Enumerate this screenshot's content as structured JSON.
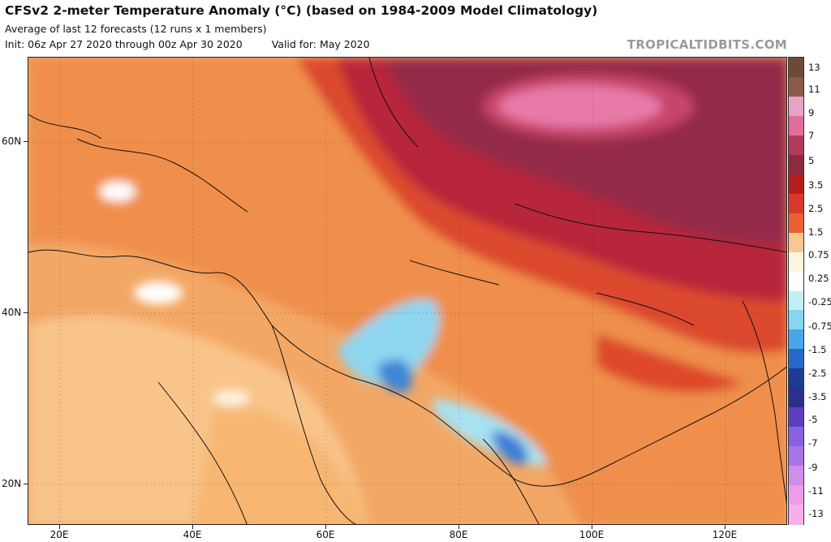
{
  "header": {
    "title": "CFSv2 2-meter Temperature Anomaly (°C) (based on 1984-2009 Model Climatology)",
    "subtitle": "Average of last 12 forecasts (12 runs x 1 members)",
    "init": "Init: 06z Apr 27 2020 through 00z Apr 30 2020",
    "valid": "Valid for: May 2020",
    "brand": "TROPICALTIDBITS.COM"
  },
  "map": {
    "lat_labels": [
      "60N",
      "40N",
      "20N"
    ],
    "lon_labels": [
      "20E",
      "40E",
      "60E",
      "80E",
      "100E",
      "120E"
    ]
  },
  "colorbar": {
    "labels": [
      "13",
      "11",
      "9",
      "7",
      "5",
      "3.5",
      "2.5",
      "1.5",
      "0.75",
      "0.25",
      "-0.25",
      "-0.75",
      "-1.5",
      "-2.5",
      "-3.5",
      "-5",
      "-7",
      "-9",
      "-11",
      "-13"
    ],
    "colors": [
      "#6e4a36",
      "#8c5a48",
      "#e7a3c3",
      "#e06e9a",
      "#b33a5a",
      "#8e2a3e",
      "#b71c1c",
      "#d9382a",
      "#ea6234",
      "#f7c98f",
      "#fff6e2",
      "#ffffff",
      "#bff0f5",
      "#86d5f2",
      "#48a6ea",
      "#2868c8",
      "#1c3c96",
      "#2d2f8a",
      "#5c3fc0",
      "#8a62dd",
      "#a975e6",
      "#d08ee8",
      "#ee9ce8",
      "#f4b0ea"
    ]
  }
}
